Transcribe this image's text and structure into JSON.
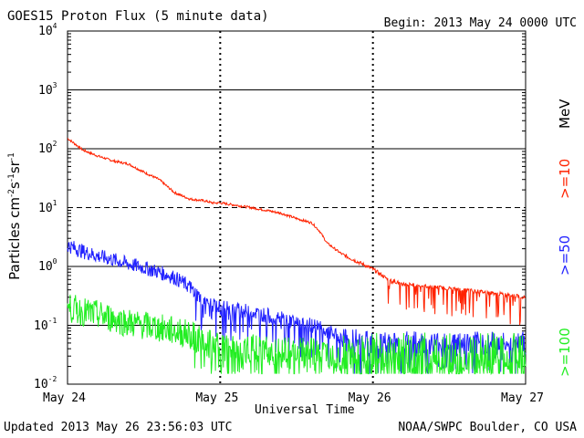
{
  "header": {
    "title": "GOES15 Proton Flux (5 minute data)",
    "begin": "Begin: 2013 May 24 0000 UTC"
  },
  "footer": {
    "updated": "Updated 2013 May 26 23:56:03 UTC",
    "credit": "NOAA/SWPC Boulder, CO USA"
  },
  "chart_data": {
    "type": "line",
    "title": "GOES15 Proton Flux (5 minute data)",
    "xlabel": "Universal Time",
    "ylabel": "Particles cm-2s-1sr-1",
    "yscale": "log",
    "ylim": [
      0.01,
      10000
    ],
    "xlim_days": [
      0,
      3
    ],
    "x_tick_labels": [
      "May 24",
      "May 25",
      "May 26",
      "May 27"
    ],
    "y_tick_labels": [
      {
        "base": "10",
        "exp": "4"
      },
      {
        "base": "10",
        "exp": "3"
      },
      {
        "base": "10",
        "exp": "2"
      },
      {
        "base": "10",
        "exp": "1"
      },
      {
        "base": "10",
        "exp": "0"
      },
      {
        "base": "10",
        "exp": "-1"
      },
      {
        "base": "10",
        "exp": "-2"
      }
    ],
    "legend_unit": "MeV",
    "series": [
      {
        "name": ">=10",
        "color": "#ff2200",
        "x": [
          0,
          0.05,
          0.1,
          0.2,
          0.3,
          0.4,
          0.5,
          0.6,
          0.7,
          0.8,
          0.9,
          0.95,
          1.0,
          1.1,
          1.2,
          1.3,
          1.4,
          1.5,
          1.6,
          1.65,
          1.7,
          1.75,
          1.8,
          1.9,
          2.0,
          2.1,
          2.2,
          2.4,
          2.6,
          2.8,
          3.0
        ],
        "values": [
          150,
          120,
          95,
          75,
          62,
          55,
          40,
          30,
          18,
          14,
          13,
          12,
          12,
          11,
          10,
          9,
          8,
          6.5,
          5.5,
          4,
          2.5,
          2.0,
          1.6,
          1.2,
          0.9,
          0.6,
          0.5,
          0.45,
          0.4,
          0.35,
          0.3
        ]
      },
      {
        "name": ">=50",
        "color": "#2222ff",
        "x": [
          0,
          0.1,
          0.2,
          0.3,
          0.4,
          0.5,
          0.6,
          0.7,
          0.8,
          0.9,
          1.0,
          1.2,
          1.4,
          1.6,
          1.7,
          1.8,
          2.0,
          2.2,
          2.4,
          2.6,
          2.8,
          3.0
        ],
        "values": [
          2.3,
          1.8,
          1.5,
          1.3,
          1.1,
          0.95,
          0.8,
          0.65,
          0.45,
          0.25,
          0.2,
          0.17,
          0.13,
          0.1,
          0.08,
          0.06,
          0.05,
          0.05,
          0.05,
          0.05,
          0.05,
          0.05
        ]
      },
      {
        "name": ">=100",
        "color": "#22ee22",
        "x": [
          0,
          0.1,
          0.2,
          0.3,
          0.4,
          0.5,
          0.6,
          0.7,
          0.8,
          0.9,
          1.0,
          1.2,
          1.4,
          1.6,
          1.8,
          2.0,
          2.2,
          2.4,
          2.6,
          2.8,
          3.0
        ],
        "values": [
          0.2,
          0.17,
          0.15,
          0.13,
          0.11,
          0.1,
          0.09,
          0.08,
          0.07,
          0.05,
          0.04,
          0.04,
          0.035,
          0.035,
          0.03,
          0.03,
          0.03,
          0.03,
          0.03,
          0.03,
          0.03
        ]
      }
    ]
  }
}
